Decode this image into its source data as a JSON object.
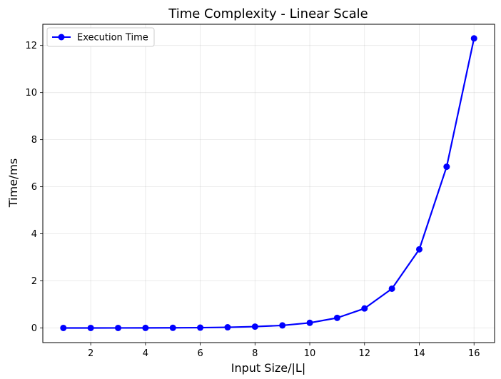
{
  "chart_data": {
    "type": "line",
    "title": "Time Complexity - Linear Scale",
    "xlabel": "Input Size/|L|",
    "ylabel": "Time/ms",
    "xlim": [
      0.25,
      16.75
    ],
    "ylim": [
      -0.62,
      12.9
    ],
    "xticks": [
      2,
      4,
      6,
      8,
      10,
      12,
      14,
      16
    ],
    "yticks": [
      0,
      2,
      4,
      6,
      8,
      10,
      12
    ],
    "grid": true,
    "legend_position": "top-left",
    "series": [
      {
        "name": "Execution Time",
        "color": "#0000ff",
        "marker": "circle",
        "x": [
          1,
          2,
          3,
          4,
          5,
          6,
          7,
          8,
          9,
          10,
          11,
          12,
          13,
          14,
          15,
          16
        ],
        "y": [
          0.002,
          0.002,
          0.003,
          0.005,
          0.008,
          0.015,
          0.03,
          0.06,
          0.11,
          0.22,
          0.43,
          0.83,
          1.67,
          3.34,
          6.85,
          12.3
        ]
      }
    ]
  }
}
